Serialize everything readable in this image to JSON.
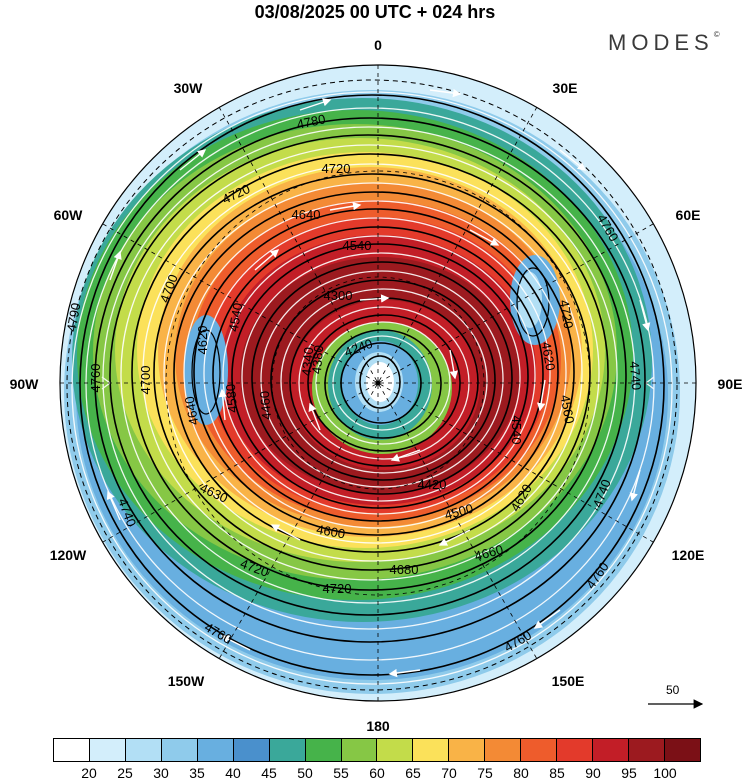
{
  "header": {
    "title": "03/08/2025  00 UTC  + 024 hrs",
    "brand": "MODES",
    "brand_mark": "©"
  },
  "map": {
    "projection": "polar stereographic (north pole)",
    "longitude_labels": {
      "n": "0",
      "ne1": "30E",
      "ne2": "60E",
      "e": "90E",
      "se1": "120E",
      "se2": "150E",
      "s": "180",
      "sw1": "150W",
      "sw2": "120W",
      "w": "90W",
      "nw2": "60W",
      "nw1": "30W"
    },
    "contour_labels": [
      "4780",
      "4720",
      "4720",
      "4640",
      "4700",
      "4700",
      "4790",
      "4760",
      "4620",
      "4640",
      "4580",
      "4540",
      "4460",
      "4380",
      "4340",
      "4300",
      "4240",
      "4540",
      "4620",
      "4560",
      "4720",
      "4740",
      "4760",
      "4540",
      "4420",
      "4500",
      "4620",
      "4600",
      "4630",
      "4740",
      "4720",
      "4720",
      "4680",
      "4660",
      "4760",
      "4760",
      "4740",
      "4760"
    ],
    "reference_vector": {
      "label": "50"
    }
  },
  "colorbar": {
    "ticks": [
      "20",
      "25",
      "30",
      "35",
      "40",
      "45",
      "50",
      "55",
      "60",
      "65",
      "70",
      "75",
      "80",
      "85",
      "90",
      "95",
      "100"
    ],
    "colors": [
      "#ffffff",
      "#d3eefb",
      "#b2dff5",
      "#8fcbeb",
      "#68afe0",
      "#4a90cc",
      "#3aa89a",
      "#46b34a",
      "#86c745",
      "#c3dc4a",
      "#fbe15a",
      "#f9b347",
      "#f38a35",
      "#ee5c2c",
      "#e33a2b",
      "#c21e27",
      "#9c1a1f",
      "#7b1016"
    ]
  }
}
